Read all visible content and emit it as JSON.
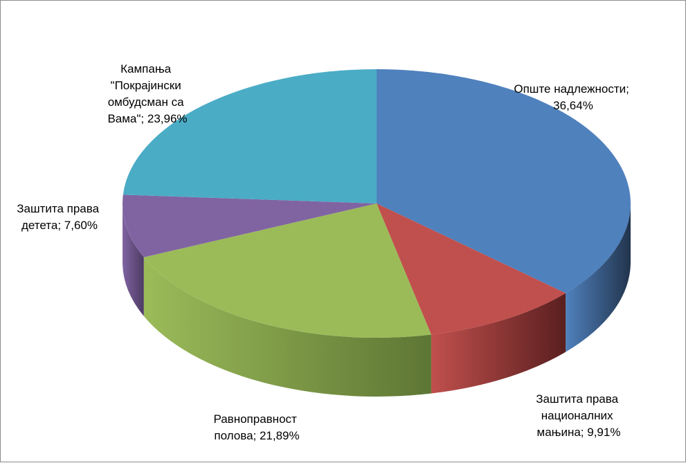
{
  "chart_data": {
    "type": "pie",
    "style": "3d-pie",
    "title": "",
    "legend": "none",
    "slices": [
      {
        "name": "Опште надлежности",
        "value": 36.64,
        "label": "Опште надлежности; 36,64%",
        "color": "#4f81bd",
        "side_color": "#22344d"
      },
      {
        "name": "Заштита права националних мањина",
        "value": 9.91,
        "label": "Заштита права националних мањина; 9,91%",
        "color": "#c0504d",
        "side_color": "#5a1f1f"
      },
      {
        "name": "Равноправност полова",
        "value": 21.89,
        "label": "Равноправност полова; 21,89%",
        "color": "#9bbb59",
        "side_color": "#5e7634"
      },
      {
        "name": "Заштита права детета",
        "value": 7.6,
        "label": "Заштита права детета; 7,60%",
        "color": "#8064a2",
        "side_color": "#4d3b63"
      },
      {
        "name": "Кампања \"Покрајински омбудсман са Вама\"",
        "value": 23.96,
        "label": "Кампања \"Покрајински омбудсман са Вама\"; 23,96%",
        "color": "#4bacc6",
        "side_color": "#2a6f82"
      }
    ]
  }
}
